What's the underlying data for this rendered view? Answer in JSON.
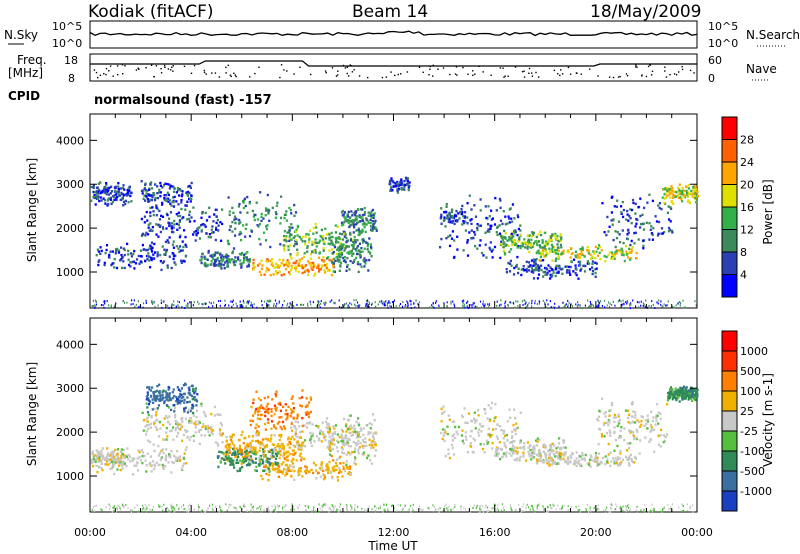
{
  "header": {
    "station": "Kodiak (fitACF)",
    "beam": "Beam 14",
    "date": "18/May/2009"
  },
  "top_panels": {
    "nsky_label": "N.Sky",
    "nsky_ticks": [
      "10^5",
      "10^0"
    ],
    "nsearch_label": "N.Search",
    "nsearch_ticks": [
      "10^5",
      "10^0"
    ],
    "freq_label": "Freq.",
    "freq_unit": "[MHz]",
    "freq_ticks": [
      "18",
      "8"
    ],
    "nave_label": "Nave",
    "nave_ticks": [
      "60",
      "0"
    ],
    "cpid_label": "CPID",
    "cpid_value": "normalsound (fast) -157"
  },
  "chart_data": [
    {
      "type": "heatmap",
      "name": "power",
      "ylabel": "Slant Range [km]",
      "yticks": [
        1000,
        2000,
        3000,
        4000
      ],
      "xticks": [
        "00:00",
        "04:00",
        "08:00",
        "12:00",
        "16:00",
        "20:00",
        "00:00"
      ],
      "xlim_hours": [
        0,
        24
      ],
      "ylim_km": [
        180,
        4600
      ],
      "colorbar_label": "Power [dB]",
      "colorbar_ticks": [
        "28",
        "24",
        "20",
        "16",
        "12",
        "8",
        "4"
      ],
      "colorbar_colors": [
        "#0000ff",
        "#2b3fb5",
        "#3c8a5a",
        "#33b04a",
        "#e0e000",
        "#ffa500",
        "#ff6000",
        "#ff0000"
      ]
    },
    {
      "type": "heatmap",
      "name": "velocity",
      "ylabel": "Slant Range [km]",
      "yticks": [
        1000,
        2000,
        3000,
        4000
      ],
      "xticks": [
        "00:00",
        "04:00",
        "08:00",
        "12:00",
        "16:00",
        "20:00",
        "00:00"
      ],
      "xlim_hours": [
        0,
        24
      ],
      "ylim_km": [
        180,
        4600
      ],
      "xlabel": "Time UT",
      "colorbar_label": "Velocity [m s-1]",
      "colorbar_ticks": [
        "1000",
        "500",
        "100",
        "25",
        "-25",
        "-100",
        "-500",
        "-1000"
      ],
      "colorbar_colors": [
        "#1a3fc0",
        "#3a6fa0",
        "#2e8b57",
        "#55c040",
        "#c8c8c8",
        "#f0b000",
        "#ff8000",
        "#ff3000",
        "#ff0000"
      ]
    }
  ]
}
